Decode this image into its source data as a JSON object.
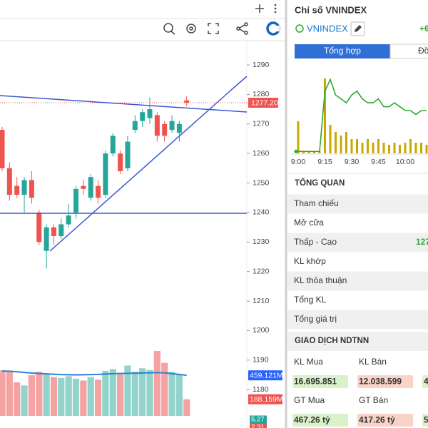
{
  "chart_data": {
    "type": "candlestick",
    "open": [
      1268,
      1255,
      1249,
      1246,
      1251,
      1240,
      1227,
      1235,
      1232,
      1236,
      1240,
      1249,
      1245,
      1249,
      1246,
      1260,
      1260,
      1255,
      1268,
      1271,
      1272,
      1273,
      1270,
      1268,
      1267,
      1278
    ],
    "high": [
      1269,
      1257,
      1252,
      1252,
      1254,
      1241,
      1236,
      1236,
      1238,
      1243,
      1249,
      1251,
      1253,
      1251,
      1261,
      1267,
      1261,
      1266,
      1273,
      1275,
      1279,
      1274,
      1271,
      1273,
      1271,
      1279.5
    ],
    "low": [
      1254,
      1244,
      1245,
      1240,
      1243,
      1229,
      1221,
      1229,
      1231,
      1235,
      1238,
      1246,
      1244,
      1243,
      1245,
      1259,
      1253,
      1254,
      1267,
      1269,
      1270,
      1264,
      1264,
      1267,
      1264,
      1276
    ],
    "close": [
      1255,
      1246,
      1246,
      1251,
      1245,
      1230,
      1235,
      1232,
      1236,
      1239,
      1248,
      1248,
      1252,
      1245,
      1260,
      1266,
      1254,
      1264,
      1271,
      1274,
      1275,
      1266,
      1266,
      1271,
      1270,
      1277.2
    ],
    "volume": [
      516,
      508,
      380,
      345,
      460,
      500,
      470,
      440,
      430,
      450,
      420,
      400,
      440,
      410,
      510,
      530,
      470,
      570,
      500,
      540,
      520,
      735,
      600,
      500,
      470,
      188.159
    ],
    "volume_ma": [
      508,
      506,
      500,
      492,
      485,
      480,
      476,
      472,
      468,
      466,
      465,
      466,
      468,
      470,
      474,
      478,
      480,
      482,
      484,
      486,
      488,
      490,
      488,
      478,
      470,
      459.121
    ],
    "last_price_label": "1277.20",
    "volume_label": "188.159M",
    "volume_ma_label": "459.121M",
    "indicator_labels": [
      "5.27",
      "2.31"
    ],
    "ylim": [
      1167,
      1297.5
    ],
    "yticks": [
      1180,
      1190,
      1200,
      1210,
      1220,
      1230,
      1240,
      1250,
      1260,
      1270,
      1280,
      1290
    ],
    "volume_ylim": [
      0,
      800
    ],
    "up_color": "#26a69a",
    "down_color": "#ef5350",
    "volume_up_color": "#92d4cc",
    "volume_down_color": "#f5a2a2",
    "ma_color": "#2f7fd8"
  },
  "panel": {
    "title": "Chỉ số VNINDEX",
    "symbol": "VNINDEX",
    "change": "+6",
    "tabs": [
      "Tổng hợp",
      "Đồ"
    ],
    "intraday": {
      "type": "line",
      "xticks": [
        "9:00",
        "9:15",
        "9:30",
        "9:45",
        "10:00",
        "1"
      ],
      "values": [
        1264.5,
        1264.5,
        1264.5,
        1264.5,
        1264.5,
        1280,
        1283,
        1279,
        1278,
        1277,
        1279,
        1280,
        1278,
        1277,
        1277,
        1278,
        1276,
        1276,
        1277,
        1276,
        1275,
        1275,
        1274,
        1275,
        1275
      ],
      "volume": [
        4.5,
        0.3,
        0.3,
        0.3,
        0.3,
        10.5,
        4,
        3,
        2.5,
        3,
        2,
        2,
        1.5,
        2,
        1.5,
        2,
        1.5,
        1.2,
        1.5,
        1.2,
        1.5,
        2,
        1.5,
        1.5,
        1.2
      ],
      "ylim": [
        1264,
        1286
      ],
      "volume_ylim": [
        0,
        12
      ],
      "color": "#2ea82e",
      "volume_color": "#c9a800"
    },
    "overview": {
      "heading": "TỔNG QUAN",
      "rows": [
        "Tham chiếu",
        "Mở cửa",
        "Thấp - Cao",
        "KL khớp",
        "KL thỏa thuận",
        "Tổng KL",
        "Tổng giá trị"
      ],
      "low_high_value": "127"
    },
    "foreign": {
      "heading": "GIAO DỊCH NDTNN",
      "cells": [
        {
          "label": "KL Mua",
          "value": "16.695.851"
        },
        {
          "label": "KL Bán",
          "value": "12.038.599"
        },
        {
          "label": "GT Mua",
          "value": "467.26 tỷ"
        },
        {
          "label": "GT Bán",
          "value": "417.26 tỷ"
        }
      ],
      "partial_values": [
        "4",
        "5"
      ]
    }
  }
}
